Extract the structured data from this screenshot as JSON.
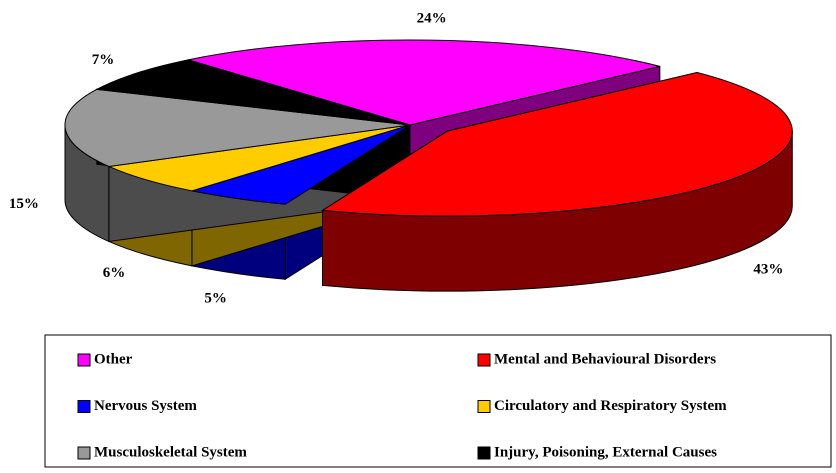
{
  "chart_data": {
    "type": "pie",
    "categories": [
      "Other",
      "Mental and Behavioural Disorders",
      "Nervous System",
      "Circulatory and Respiratory System",
      "Musculoskeletal System",
      "Injury, Poisoning, External Causes"
    ],
    "values": [
      24,
      43,
      5,
      6,
      15,
      7
    ],
    "value_labels": [
      "24%",
      "43%",
      "5%",
      "6%",
      "15%",
      "7%"
    ],
    "colors": [
      "#ff00ff",
      "#ff0000",
      "#0000ff",
      "#ffcc00",
      "#999999",
      "#000000"
    ],
    "exploded": [
      1
    ],
    "legend": "bottom"
  }
}
